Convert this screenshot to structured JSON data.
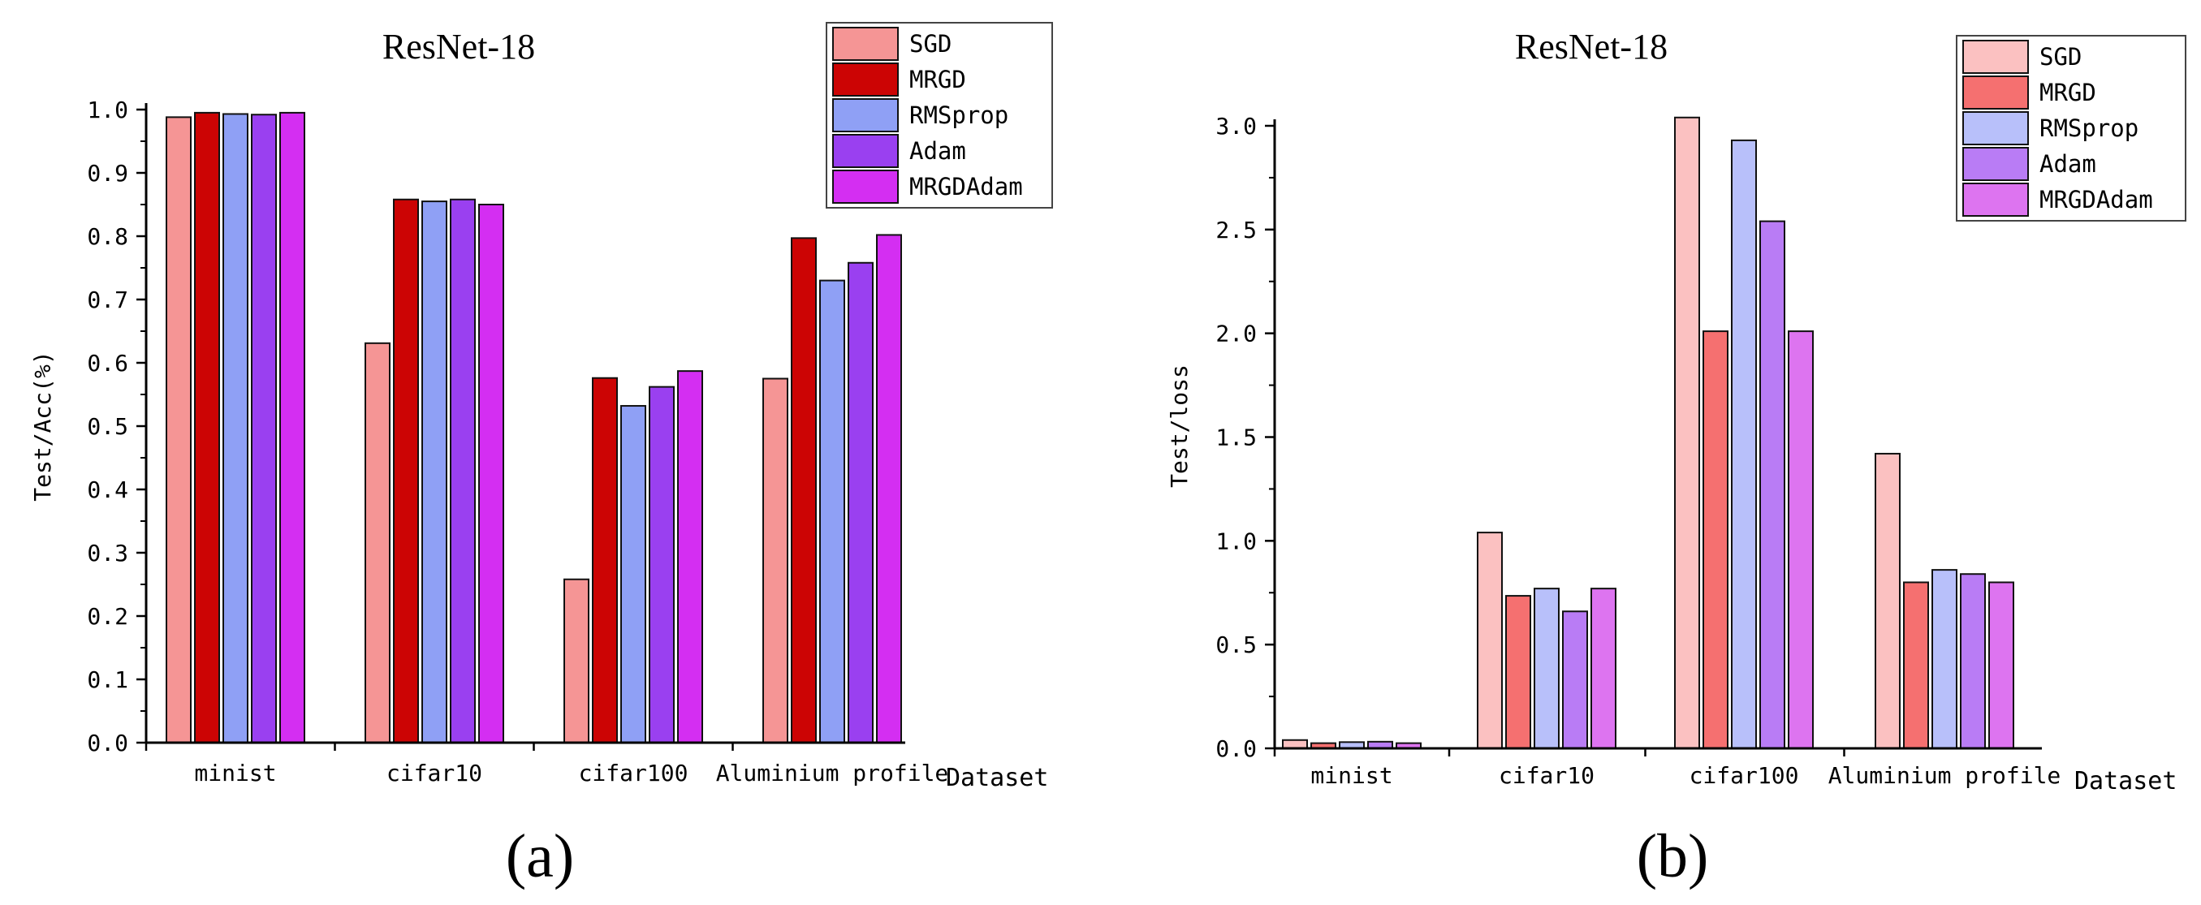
{
  "chart_data": [
    {
      "type": "bar",
      "panel_label": "(a)",
      "title": "ResNet-18",
      "xlabel": "Dataset",
      "ylabel": "Test/Acc(%)",
      "ylim": [
        0,
        1.0
      ],
      "yticks": [
        "0.0",
        "0.1",
        "0.2",
        "0.3",
        "0.4",
        "0.5",
        "0.6",
        "0.7",
        "0.8",
        "0.9",
        "1.0"
      ],
      "categories": [
        "minist",
        "cifar10",
        "cifar100",
        "Aluminium profile"
      ],
      "legend_position": "top-right",
      "series": [
        {
          "name": "SGD",
          "color": "#f59595",
          "values": [
            0.988,
            0.631,
            0.258,
            0.575
          ]
        },
        {
          "name": "MRGD",
          "color": "#cc0404",
          "values": [
            0.995,
            0.858,
            0.576,
            0.797
          ]
        },
        {
          "name": "RMSprop",
          "color": "#8fa0f5",
          "values": [
            0.993,
            0.855,
            0.532,
            0.73
          ]
        },
        {
          "name": "Adam",
          "color": "#9a40f0",
          "values": [
            0.992,
            0.858,
            0.562,
            0.758
          ]
        },
        {
          "name": "MRGDAdam",
          "color": "#d42ef2",
          "values": [
            0.995,
            0.85,
            0.587,
            0.802
          ]
        }
      ]
    },
    {
      "type": "bar",
      "panel_label": "(b)",
      "title": "ResNet-18",
      "xlabel": "Dataset",
      "ylabel": "Test/loss",
      "ylim": [
        0,
        3.0
      ],
      "yticks": [
        "0.0",
        "0.5",
        "1.0",
        "1.5",
        "2.0",
        "2.5",
        "3.0"
      ],
      "categories": [
        "minist",
        "cifar10",
        "cifar100",
        "Aluminium profile"
      ],
      "legend_position": "top-right",
      "series": [
        {
          "name": "SGD",
          "color": "#fbc1c1",
          "values": [
            0.04,
            1.04,
            3.04,
            1.42
          ]
        },
        {
          "name": "MRGD",
          "color": "#f57070",
          "values": [
            0.025,
            0.735,
            2.01,
            0.8
          ]
        },
        {
          "name": "RMSprop",
          "color": "#b8c0fa",
          "values": [
            0.03,
            0.77,
            2.93,
            0.86
          ]
        },
        {
          "name": "Adam",
          "color": "#b97cf5",
          "values": [
            0.032,
            0.66,
            2.54,
            0.84
          ]
        },
        {
          "name": "MRGDAdam",
          "color": "#dd74f0",
          "values": [
            0.025,
            0.77,
            2.01,
            0.8
          ]
        }
      ]
    }
  ]
}
